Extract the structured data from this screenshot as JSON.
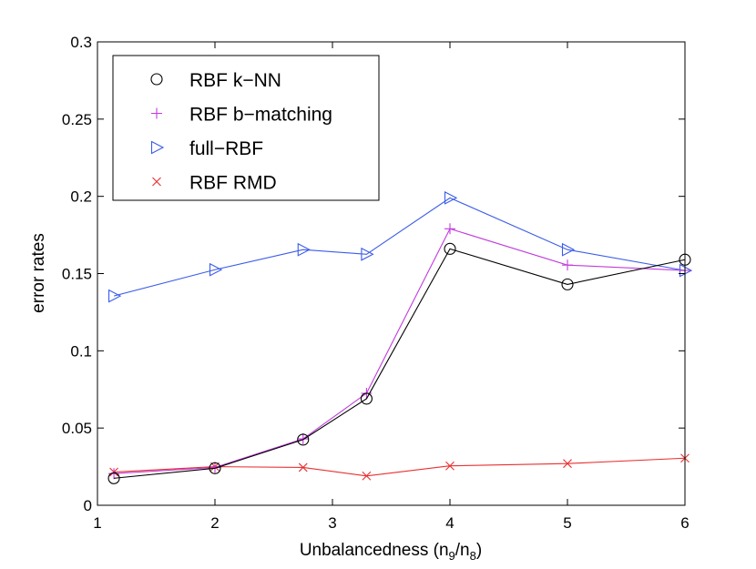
{
  "chart_data": {
    "type": "line",
    "title": "",
    "xlabel": "Unbalancedness (n",
    "xlabel_sub1": "9",
    "xlabel_mid": "/n",
    "xlabel_sub2": "8",
    "xlabel_end": ")",
    "ylabel": "error rates",
    "xlim": [
      1,
      6
    ],
    "ylim": [
      0,
      0.3
    ],
    "xticks": [
      1,
      2,
      3,
      4,
      5,
      6
    ],
    "xtick_labels": [
      "1",
      "2",
      "3",
      "4",
      "5",
      "6"
    ],
    "yticks": [
      0,
      0.05,
      0.1,
      0.15,
      0.2,
      0.25,
      0.3
    ],
    "ytick_labels": [
      "0",
      "0.05",
      "0.1",
      "0.15",
      "0.2",
      "0.25",
      "0.3"
    ],
    "legend_position": "top-left",
    "grid": false,
    "series": [
      {
        "name": "RBF k−NN",
        "marker": "circle",
        "color": "#000000",
        "x": [
          1.14,
          2.0,
          2.75,
          3.29,
          4.0,
          5.0,
          6.0
        ],
        "y": [
          0.0175,
          0.024,
          0.0425,
          0.069,
          0.166,
          0.143,
          0.159
        ]
      },
      {
        "name": "RBF b−matching",
        "marker": "plus",
        "color": "#c13cdc",
        "x": [
          1.14,
          2.0,
          2.75,
          3.29,
          4.0,
          5.0,
          6.0
        ],
        "y": [
          0.0205,
          0.0245,
          0.043,
          0.0725,
          0.179,
          0.1555,
          0.152
        ]
      },
      {
        "name": "full−RBF",
        "marker": "triangle-right",
        "color": "#3b5ce8",
        "x": [
          1.14,
          2.0,
          2.75,
          3.29,
          4.0,
          5.0,
          6.0
        ],
        "y": [
          0.1355,
          0.1525,
          0.1655,
          0.1625,
          0.199,
          0.1655,
          0.152
        ]
      },
      {
        "name": "RBF RMD",
        "marker": "x",
        "color": "#e83030",
        "x": [
          1.14,
          2.0,
          2.75,
          3.29,
          4.0,
          5.0,
          6.0
        ],
        "y": [
          0.0215,
          0.025,
          0.0245,
          0.019,
          0.0255,
          0.027,
          0.0305
        ]
      }
    ]
  }
}
